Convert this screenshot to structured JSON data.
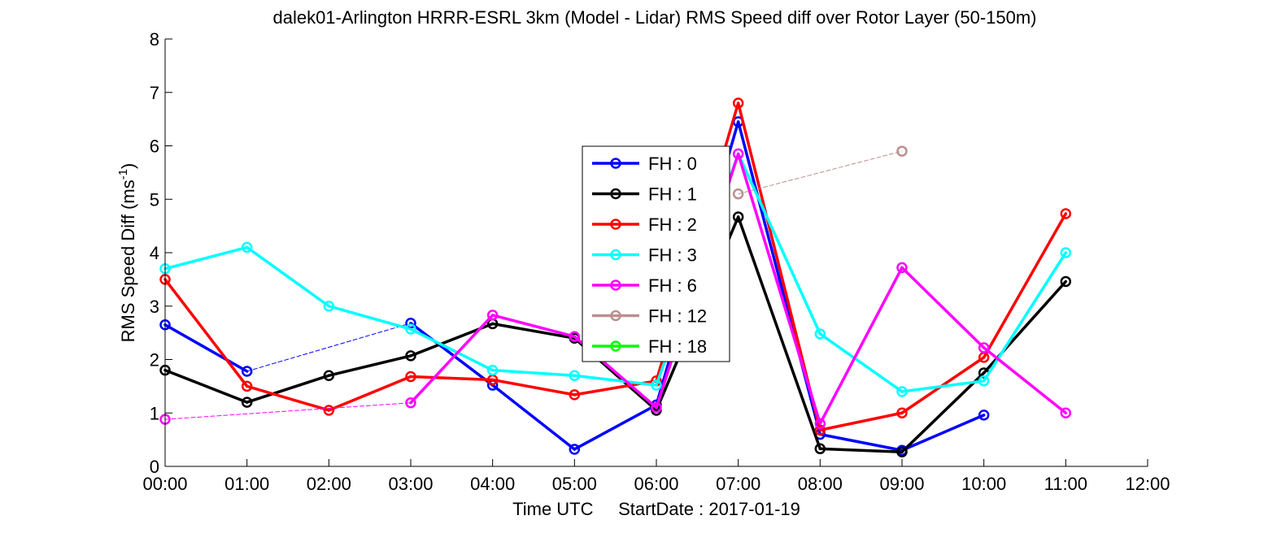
{
  "chart_data": {
    "type": "line",
    "title": "dalek01-Arlington HRRR-ESRL 3km (Model - Lidar) RMS Speed diff over Rotor Layer (50-150m)",
    "xlabel": "Time UTC     StartDate : 2017-01-19",
    "ylabel": "RMS Speed Diff (ms",
    "ylabel_sup": "-1",
    "ylabel_end": ")",
    "x_ticks": [
      "00:00",
      "01:00",
      "02:00",
      "03:00",
      "04:00",
      "05:00",
      "06:00",
      "07:00",
      "08:00",
      "09:00",
      "10:00",
      "11:00",
      "12:00"
    ],
    "y_ticks": [
      "0",
      "1",
      "2",
      "3",
      "4",
      "5",
      "6",
      "7",
      "8"
    ],
    "xlim": [
      0,
      12
    ],
    "ylim": [
      0,
      8
    ],
    "grid": false,
    "legend_position": "center",
    "series": [
      {
        "name": "FH : 0",
        "color": "#0000ff",
        "x": [
          0,
          1,
          3,
          4,
          5,
          6,
          7,
          8,
          9,
          10
        ],
        "y": [
          2.65,
          1.78,
          2.68,
          1.52,
          0.32,
          1.15,
          6.45,
          0.6,
          0.3,
          0.96
        ]
      },
      {
        "name": "FH : 1",
        "color": "#000000",
        "x": [
          0,
          1,
          2,
          3,
          4,
          5,
          6,
          7,
          8,
          9,
          10,
          11
        ],
        "y": [
          1.8,
          1.2,
          1.7,
          2.07,
          2.67,
          2.4,
          1.05,
          4.67,
          0.33,
          0.27,
          1.75,
          3.46
        ]
      },
      {
        "name": "FH : 2",
        "color": "#ff0000",
        "x": [
          0,
          1,
          2,
          3,
          4,
          5,
          6,
          7,
          8,
          9,
          10,
          11
        ],
        "y": [
          3.5,
          1.5,
          1.05,
          1.68,
          1.62,
          1.34,
          1.6,
          6.8,
          0.68,
          1.0,
          2.04,
          4.73
        ]
      },
      {
        "name": "FH : 3",
        "color": "#00ffff",
        "x": [
          0,
          1,
          2,
          3,
          4,
          5,
          6,
          7,
          8,
          9,
          10,
          11
        ],
        "y": [
          3.7,
          4.1,
          3.0,
          2.57,
          1.8,
          1.7,
          1.52,
          5.85,
          2.48,
          1.4,
          1.6,
          4.0
        ]
      },
      {
        "name": "FH : 6",
        "color": "#ff00ff",
        "x": [
          0,
          3,
          4,
          5,
          6,
          7,
          8,
          9,
          10,
          11
        ],
        "y": [
          0.88,
          1.19,
          2.83,
          2.43,
          1.1,
          5.85,
          0.8,
          3.72,
          2.22,
          1.0
        ]
      },
      {
        "name": "FH : 12",
        "color": "#bc8f8f",
        "x": [
          7,
          9
        ],
        "y": [
          5.1,
          5.9
        ]
      },
      {
        "name": "FH : 18",
        "color": "#00ff00",
        "x": [],
        "y": []
      }
    ]
  }
}
